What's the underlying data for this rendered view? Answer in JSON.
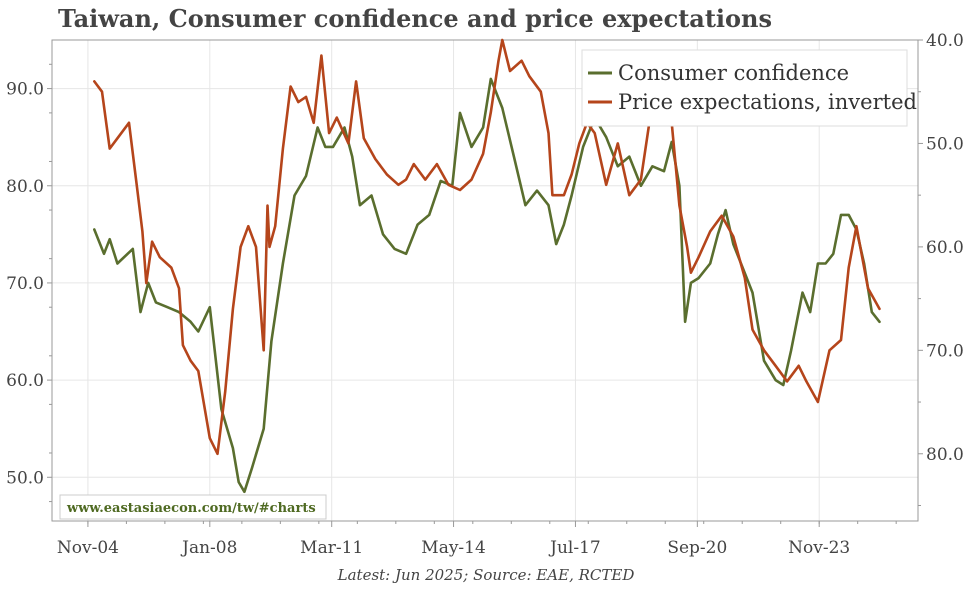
{
  "chart_data": {
    "type": "line",
    "title": "Taiwan, Consumer confidence and price expectations",
    "footer": "Latest: Jun 2025; Source: EAE, RCTED",
    "watermark": "www.eastasiaecon.com/tw/#charts",
    "x_tick_labels": [
      "Nov-04",
      "Jan-08",
      "Mar-11",
      "May-14",
      "Jul-17",
      "Sep-20",
      "Nov-23"
    ],
    "x_tick_positions": [
      2004.833,
      2008.0,
      2011.167,
      2014.333,
      2017.5,
      2020.667,
      2023.833
    ],
    "xlim": [
      2003.9,
      2026.4
    ],
    "left_axis": {
      "ylim": [
        45.5,
        95.0
      ],
      "ticks": [
        50,
        60,
        70,
        80,
        90
      ],
      "tick_labels": [
        "50.0",
        "60.0",
        "70.0",
        "80.0",
        "90.0"
      ]
    },
    "right_axis": {
      "inverted": true,
      "ylim": [
        40.0,
        86.5
      ],
      "ticks": [
        40,
        50,
        60,
        70,
        80
      ],
      "tick_labels": [
        "40.0",
        "50.0",
        "60.0",
        "70.0",
        "80.0"
      ]
    },
    "legend_position": "top-right",
    "series": [
      {
        "name": "Consumer confidence",
        "axis": "left",
        "color": "#5a6e2e",
        "x": [
          2005.0,
          2005.25,
          2005.4,
          2005.6,
          2006.0,
          2006.2,
          2006.4,
          2006.6,
          2006.9,
          2007.2,
          2007.5,
          2007.7,
          2008.0,
          2008.3,
          2008.6,
          2008.75,
          2008.9,
          2009.1,
          2009.4,
          2009.6,
          2009.9,
          2010.2,
          2010.5,
          2010.8,
          2011.0,
          2011.2,
          2011.5,
          2011.7,
          2011.9,
          2012.2,
          2012.5,
          2012.8,
          2013.1,
          2013.4,
          2013.7,
          2014.0,
          2014.3,
          2014.5,
          2014.8,
          2015.1,
          2015.3,
          2015.6,
          2015.9,
          2016.2,
          2016.5,
          2016.8,
          2017.0,
          2017.2,
          2017.4,
          2017.7,
          2018.0,
          2018.3,
          2018.6,
          2018.9,
          2019.2,
          2019.5,
          2019.8,
          2020.0,
          2020.2,
          2020.35,
          2020.5,
          2020.7,
          2021.0,
          2021.2,
          2021.4,
          2021.6,
          2021.8,
          2022.1,
          2022.4,
          2022.7,
          2022.9,
          2023.1,
          2023.4,
          2023.6,
          2023.8,
          2024.0,
          2024.2,
          2024.4,
          2024.6,
          2024.8,
          2025.0,
          2025.2,
          2025.4
        ],
        "values": [
          75.5,
          73.0,
          74.5,
          72.0,
          73.5,
          67.0,
          70.0,
          68.0,
          67.5,
          67.0,
          66.0,
          65.0,
          67.5,
          57.0,
          53.0,
          49.5,
          48.5,
          51.0,
          55.0,
          64.0,
          72.0,
          79.0,
          81.0,
          86.0,
          84.0,
          84.0,
          86.0,
          83.0,
          78.0,
          79.0,
          75.0,
          73.5,
          73.0,
          76.0,
          77.0,
          80.5,
          80.0,
          87.5,
          84.0,
          86.0,
          91.0,
          88.0,
          83.0,
          78.0,
          79.5,
          78.0,
          74.0,
          76.0,
          79.0,
          84.0,
          87.0,
          85.0,
          82.0,
          83.0,
          80.0,
          82.0,
          81.5,
          84.5,
          80.0,
          66.0,
          70.0,
          70.5,
          72.0,
          75.0,
          77.5,
          74.0,
          72.0,
          69.0,
          62.0,
          60.0,
          59.5,
          63.0,
          69.0,
          67.0,
          72.0,
          72.0,
          73.0,
          77.0,
          77.0,
          75.5,
          72.0,
          67.0,
          66.0
        ]
      },
      {
        "name": "Price expectations, inverted",
        "axis": "right",
        "color": "#b5451b",
        "x": [
          2005.0,
          2005.2,
          2005.4,
          2005.6,
          2005.9,
          2006.1,
          2006.25,
          2006.35,
          2006.5,
          2006.7,
          2007.0,
          2007.2,
          2007.3,
          2007.5,
          2007.7,
          2008.0,
          2008.2,
          2008.4,
          2008.6,
          2008.8,
          2009.0,
          2009.2,
          2009.4,
          2009.5,
          2009.55,
          2009.7,
          2009.9,
          2010.1,
          2010.3,
          2010.5,
          2010.7,
          2010.9,
          2011.1,
          2011.3,
          2011.6,
          2011.8,
          2012.0,
          2012.3,
          2012.6,
          2012.9,
          2013.1,
          2013.3,
          2013.6,
          2013.9,
          2014.2,
          2014.5,
          2014.8,
          2015.1,
          2015.3,
          2015.5,
          2015.6,
          2015.8,
          2016.1,
          2016.3,
          2016.6,
          2016.8,
          2016.9,
          2017.2,
          2017.4,
          2017.6,
          2017.8,
          2018.0,
          2018.3,
          2018.6,
          2018.9,
          2019.2,
          2019.5,
          2019.8,
          2020.0,
          2020.2,
          2020.4,
          2020.5,
          2020.7,
          2021.0,
          2021.3,
          2021.6,
          2021.9,
          2022.1,
          2022.4,
          2022.7,
          2023.0,
          2023.3,
          2023.5,
          2023.8,
          2024.1,
          2024.4,
          2024.6,
          2024.8,
          2025.1,
          2025.4
        ],
        "values": [
          44.0,
          45.0,
          50.5,
          49.5,
          48.0,
          54.0,
          58.5,
          63.5,
          59.5,
          61.0,
          62.0,
          64.0,
          69.5,
          71.0,
          72.0,
          78.5,
          80.0,
          74.0,
          66.0,
          60.0,
          58.0,
          60.0,
          70.0,
          56.0,
          60.0,
          58.0,
          50.5,
          44.5,
          46.0,
          45.5,
          48.0,
          41.5,
          49.0,
          47.5,
          50.0,
          44.0,
          49.5,
          51.5,
          53.0,
          54.0,
          53.5,
          52.0,
          53.5,
          52.0,
          54.0,
          54.5,
          53.5,
          51.0,
          47.0,
          42.0,
          40.0,
          43.0,
          42.0,
          43.5,
          45.0,
          49.0,
          55.0,
          55.0,
          53.0,
          50.0,
          48.0,
          49.0,
          54.0,
          50.0,
          55.0,
          53.5,
          46.0,
          45.0,
          48.0,
          56.0,
          60.0,
          62.5,
          61.0,
          58.5,
          57.0,
          59.0,
          63.0,
          68.0,
          70.0,
          71.5,
          73.0,
          71.5,
          73.0,
          75.0,
          70.0,
          69.0,
          62.0,
          58.0,
          64.0,
          66.0
        ]
      }
    ]
  }
}
